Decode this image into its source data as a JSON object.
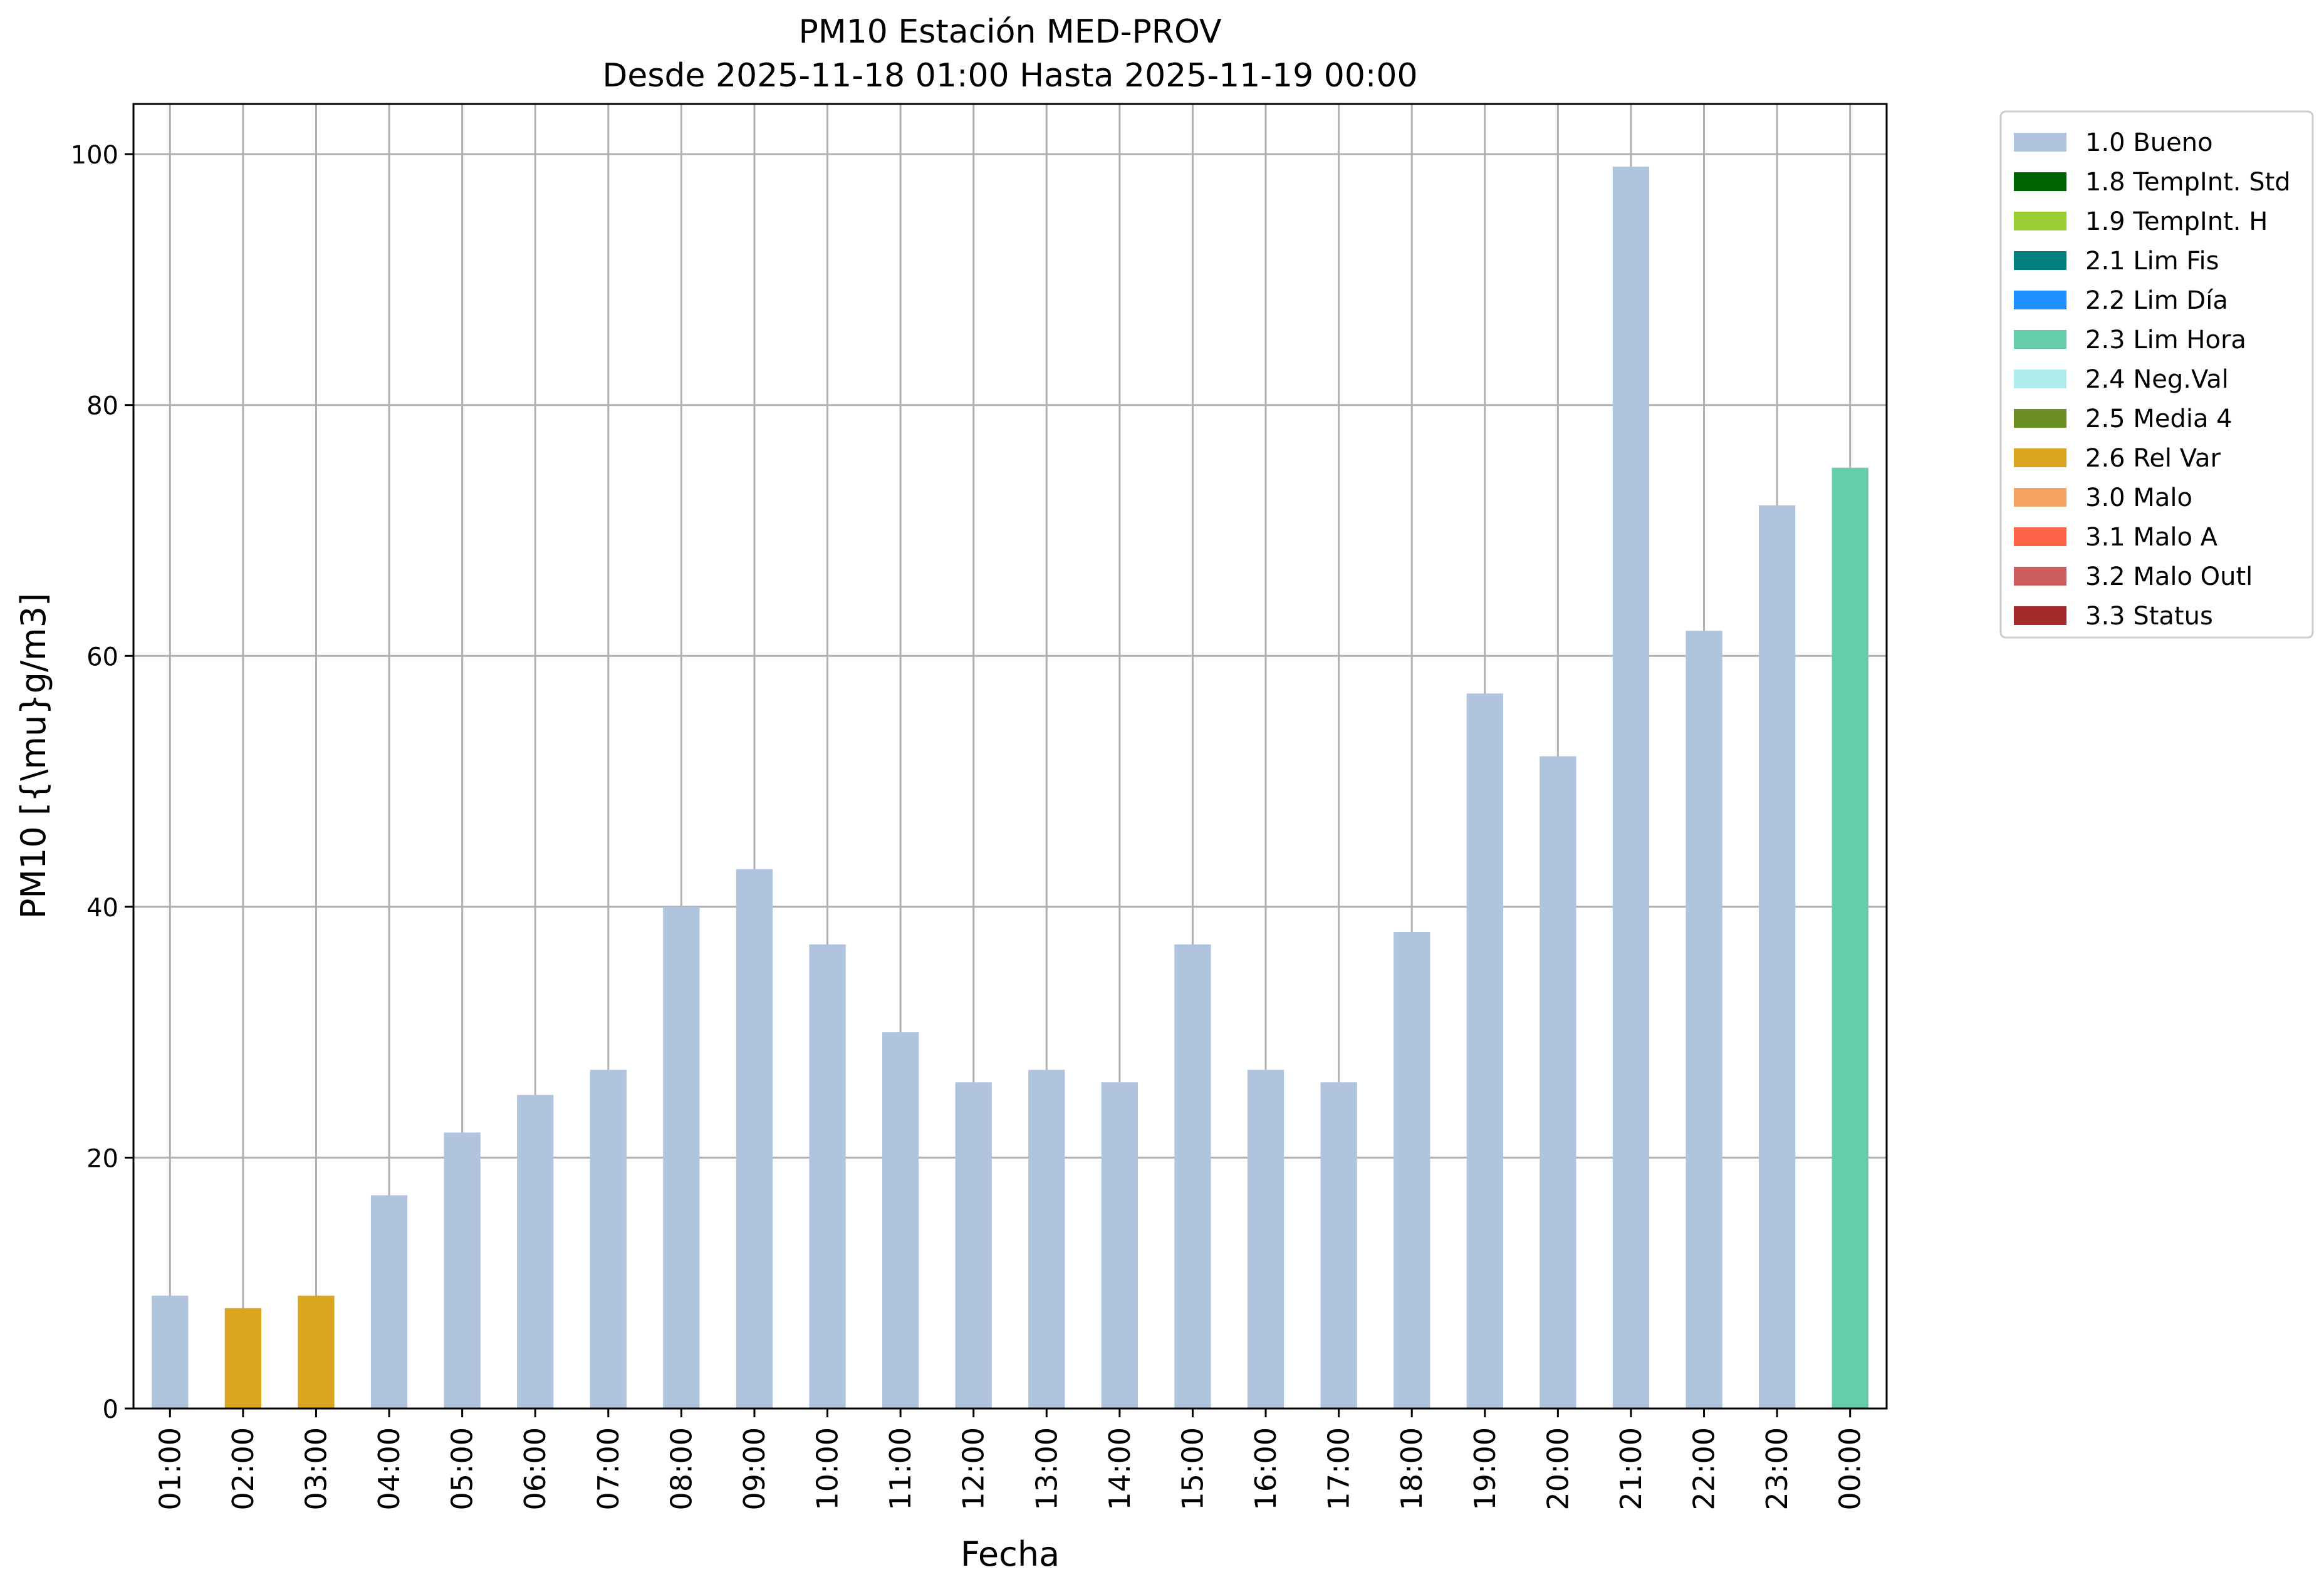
{
  "chart_data": {
    "type": "bar",
    "title": "PM10 Estación MED-PROV",
    "subtitle": "Desde 2025-11-18 01:00 Hasta 2025-11-19 00:00",
    "xlabel": "Fecha",
    "ylabel": "PM10 [{\\mu}g/m3]",
    "ylim": [
      0,
      104
    ],
    "yticks": [
      0,
      20,
      40,
      60,
      80,
      100
    ],
    "grid": true,
    "legend_position": "outside-top-right",
    "categories": [
      "01:00",
      "02:00",
      "03:00",
      "04:00",
      "05:00",
      "06:00",
      "07:00",
      "08:00",
      "09:00",
      "10:00",
      "11:00",
      "12:00",
      "13:00",
      "14:00",
      "15:00",
      "16:00",
      "17:00",
      "18:00",
      "19:00",
      "20:00",
      "21:00",
      "22:00",
      "23:00",
      "00:00"
    ],
    "values": [
      9,
      8,
      9,
      17,
      22,
      25,
      27,
      40,
      43,
      37,
      30,
      26,
      27,
      26,
      37,
      27,
      26,
      38,
      57,
      52,
      99,
      62,
      72,
      75
    ],
    "flags": [
      "1.0 Bueno",
      "2.6 Rel Var",
      "2.6 Rel Var",
      "1.0 Bueno",
      "1.0 Bueno",
      "1.0 Bueno",
      "1.0 Bueno",
      "1.0 Bueno",
      "1.0 Bueno",
      "1.0 Bueno",
      "1.0 Bueno",
      "1.0 Bueno",
      "1.0 Bueno",
      "1.0 Bueno",
      "1.0 Bueno",
      "1.0 Bueno",
      "1.0 Bueno",
      "1.0 Bueno",
      "1.0 Bueno",
      "1.0 Bueno",
      "1.0 Bueno",
      "1.0 Bueno",
      "1.0 Bueno",
      "2.3 Lim Hora"
    ],
    "legend": [
      {
        "label": "1.0 Bueno",
        "color": "#b0c4de"
      },
      {
        "label": "1.8 TempInt. Std",
        "color": "#006400"
      },
      {
        "label": "1.9 TempInt. H",
        "color": "#9acd32"
      },
      {
        "label": "2.1 Lim Fis",
        "color": "#008080"
      },
      {
        "label": "2.2 Lim Día",
        "color": "#1e90ff"
      },
      {
        "label": "2.3 Lim Hora",
        "color": "#66cdaa"
      },
      {
        "label": "2.4 Neg.Val",
        "color": "#afeeee"
      },
      {
        "label": "2.5 Media 4",
        "color": "#6b8e23"
      },
      {
        "label": "2.6 Rel Var",
        "color": "#daa520"
      },
      {
        "label": "3.0 Malo",
        "color": "#f4a460"
      },
      {
        "label": "3.1 Malo A",
        "color": "#ff6347"
      },
      {
        "label": "3.2 Malo Outl",
        "color": "#cd5c5c"
      },
      {
        "label": "3.3 Status",
        "color": "#a52a2a"
      }
    ]
  }
}
